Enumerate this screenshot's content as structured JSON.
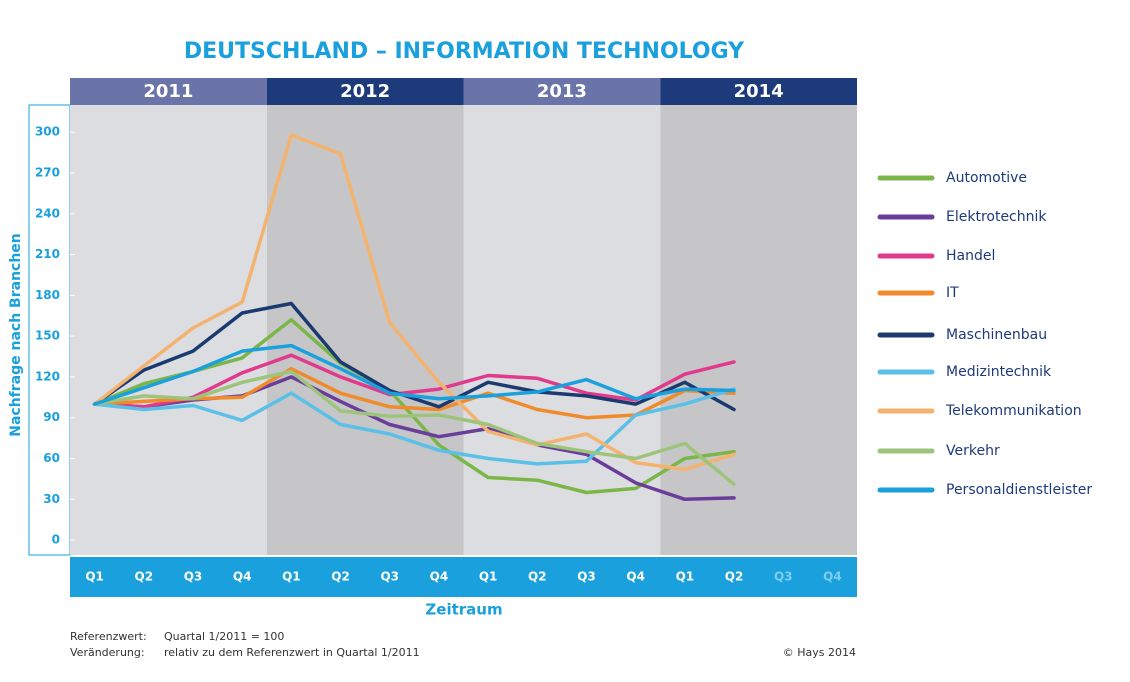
{
  "chart_data": {
    "type": "line",
    "title": "DEUTSCHLAND – INFORMATION TECHNOLOGY",
    "y_label": "Nachfrage nach Branchen",
    "x_label": "Zeitraum",
    "years": [
      "2011",
      "2012",
      "2013",
      "2014"
    ],
    "categories": [
      "Q1",
      "Q2",
      "Q3",
      "Q4",
      "Q1",
      "Q2",
      "Q3",
      "Q4",
      "Q1",
      "Q2",
      "Q3",
      "Q4",
      "Q1",
      "Q2",
      "Q3",
      "Q4"
    ],
    "ylim": [
      -11,
      320
    ],
    "yticks": [
      0,
      30,
      60,
      90,
      120,
      150,
      180,
      210,
      240,
      270,
      300
    ],
    "legend": "right",
    "series": [
      {
        "name": "Automotive",
        "color": "#7ab648",
        "values": [
          100,
          115,
          124,
          134,
          162,
          130,
          110,
          70,
          46,
          44,
          35,
          38,
          60,
          65,
          null,
          null
        ]
      },
      {
        "name": "Elektrotechnik",
        "color": "#6a3d9a",
        "values": [
          100,
          98,
          103,
          106,
          120,
          102,
          85,
          76,
          82,
          70,
          63,
          42,
          30,
          31,
          null,
          null
        ]
      },
      {
        "name": "Handel",
        "color": "#e03a8c",
        "values": [
          100,
          98,
          105,
          123,
          136,
          120,
          107,
          111,
          121,
          119,
          108,
          103,
          122,
          131,
          null,
          null
        ]
      },
      {
        "name": "IT",
        "color": "#f08a2a",
        "values": [
          100,
          102,
          104,
          105,
          126,
          108,
          98,
          96,
          108,
          96,
          90,
          92,
          110,
          108,
          null,
          null
        ]
      },
      {
        "name": "Maschinenbau",
        "color": "#1b3a70",
        "values": [
          100,
          125,
          139,
          167,
          174,
          131,
          110,
          98,
          116,
          109,
          106,
          100,
          116,
          96,
          null,
          null
        ]
      },
      {
        "name": "Medizintechnik",
        "color": "#5bc0e8",
        "values": [
          100,
          96,
          99,
          88,
          108,
          85,
          78,
          66,
          60,
          56,
          58,
          92,
          100,
          111,
          null,
          null
        ]
      },
      {
        "name": "Telekommunikation",
        "color": "#f3b36f",
        "values": [
          100,
          128,
          156,
          175,
          298,
          284,
          160,
          116,
          80,
          70,
          78,
          57,
          52,
          63,
          null,
          null
        ]
      },
      {
        "name": "Verkehr",
        "color": "#9dc47a",
        "values": [
          100,
          106,
          104,
          116,
          124,
          95,
          91,
          92,
          85,
          71,
          65,
          60,
          71,
          41,
          null,
          null
        ]
      },
      {
        "name": "Personaldienstleister",
        "color": "#1aa0dc",
        "values": [
          100,
          112,
          124,
          139,
          143,
          126,
          108,
          104,
          106,
          109,
          118,
          104,
          111,
          110,
          null,
          null
        ]
      }
    ],
    "footnotes": [
      {
        "key": "Referenzwert:",
        "text": "Quartal 1/2011 = 100"
      },
      {
        "key": "Veränderung:",
        "text": "relativ zu dem Referenzwert in Quartal 1/2011"
      }
    ],
    "copyright": "© Hays 2014"
  }
}
